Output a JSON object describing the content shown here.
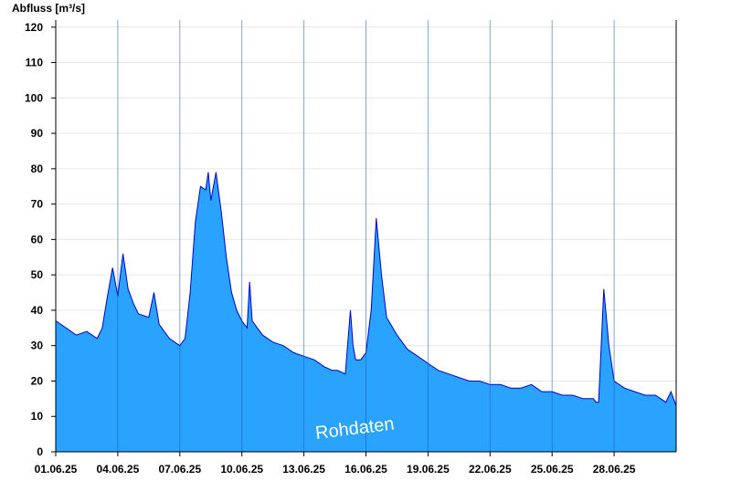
{
  "chart_data": {
    "type": "area",
    "ylabel": "Abfluss [m³/s]",
    "ylim": [
      0,
      122
    ],
    "yticks": [
      0,
      10,
      20,
      30,
      40,
      50,
      60,
      70,
      80,
      90,
      100,
      110,
      120
    ],
    "xlim": [
      "01.06.25 00:00",
      "01.07.25 00:00"
    ],
    "xticks": [
      "01.06.25",
      "04.06.25",
      "07.06.25",
      "10.06.25",
      "13.06.25",
      "16.06.25",
      "19.06.25",
      "22.06.25",
      "25.06.25",
      "28.06.25"
    ],
    "grid": true,
    "watermark": "Rohdaten",
    "colors": {
      "fill": "#29a3ff",
      "line": "#0000cc",
      "vlines": "#1c5fa8",
      "grid": "#e6e6e6"
    },
    "series": [
      {
        "x": [
          "01.06.25 00:00",
          "01.06.25 12:00",
          "02.06.25 00:00",
          "02.06.25 12:00",
          "03.06.25 00:00",
          "03.06.25 06:00",
          "03.06.25 12:00",
          "03.06.25 18:00",
          "04.06.25 00:00",
          "04.06.25 03:00",
          "04.06.25 06:00",
          "04.06.25 12:00",
          "04.06.25 18:00",
          "05.06.25 00:00",
          "05.06.25 12:00",
          "05.06.25 18:00",
          "06.06.25 00:00",
          "06.06.25 06:00",
          "06.06.25 12:00",
          "07.06.25 00:00",
          "07.06.25 06:00",
          "07.06.25 12:00",
          "07.06.25 18:00",
          "08.06.25 00:00",
          "08.06.25 06:00",
          "08.06.25 09:00",
          "08.06.25 12:00",
          "08.06.25 18:00",
          "09.06.25 00:00",
          "09.06.25 06:00",
          "09.06.25 12:00",
          "09.06.25 18:00",
          "10.06.25 00:00",
          "10.06.25 06:00",
          "10.06.25 09:00",
          "10.06.25 12:00",
          "11.06.25 00:00",
          "11.06.25 12:00",
          "12.06.25 00:00",
          "12.06.25 12:00",
          "13.06.25 00:00",
          "13.06.25 12:00",
          "14.06.25 00:00",
          "14.06.25 09:00",
          "14.06.25 15:00",
          "15.06.25 00:00",
          "15.06.25 06:00",
          "15.06.25 09:00",
          "15.06.25 12:00",
          "15.06.25 18:00",
          "16.06.25 00:00",
          "16.06.25 06:00",
          "16.06.25 12:00",
          "16.06.25 18:00",
          "17.06.25 00:00",
          "17.06.25 12:00",
          "18.06.25 00:00",
          "18.06.25 12:00",
          "19.06.25 00:00",
          "19.06.25 12:00",
          "20.06.25 00:00",
          "20.06.25 12:00",
          "21.06.25 00:00",
          "21.06.25 12:00",
          "22.06.25 00:00",
          "22.06.25 12:00",
          "23.06.25 00:00",
          "23.06.25 12:00",
          "24.06.25 00:00",
          "24.06.25 12:00",
          "25.06.25 00:00",
          "25.06.25 12:00",
          "26.06.25 00:00",
          "26.06.25 12:00",
          "27.06.25 00:00",
          "27.06.25 03:00",
          "27.06.25 06:00",
          "27.06.25 12:00",
          "27.06.25 18:00",
          "28.06.25 00:00",
          "28.06.25 12:00",
          "29.06.25 00:00",
          "29.06.25 12:00",
          "30.06.25 00:00",
          "30.06.25 06:00",
          "30.06.25 12:00",
          "30.06.25 18:00",
          "01.07.25 00:00"
        ],
        "values": [
          37,
          35,
          33,
          34,
          32,
          35,
          44,
          52,
          44,
          50,
          56,
          46,
          42,
          39,
          38,
          45,
          36,
          34,
          32,
          30,
          32,
          45,
          65,
          75,
          74,
          79,
          71,
          79,
          68,
          55,
          45,
          40,
          37,
          35,
          48,
          37,
          33,
          31,
          30,
          28,
          27,
          26,
          24,
          23,
          23,
          22,
          40,
          30,
          26,
          26,
          28,
          40,
          66,
          50,
          38,
          33,
          29,
          27,
          25,
          23,
          22,
          21,
          20,
          20,
          19,
          19,
          18,
          18,
          19,
          17,
          17,
          16,
          16,
          15,
          15,
          14,
          14,
          46,
          30,
          20,
          18,
          17,
          16,
          16,
          15,
          14,
          17,
          13
        ]
      }
    ]
  }
}
